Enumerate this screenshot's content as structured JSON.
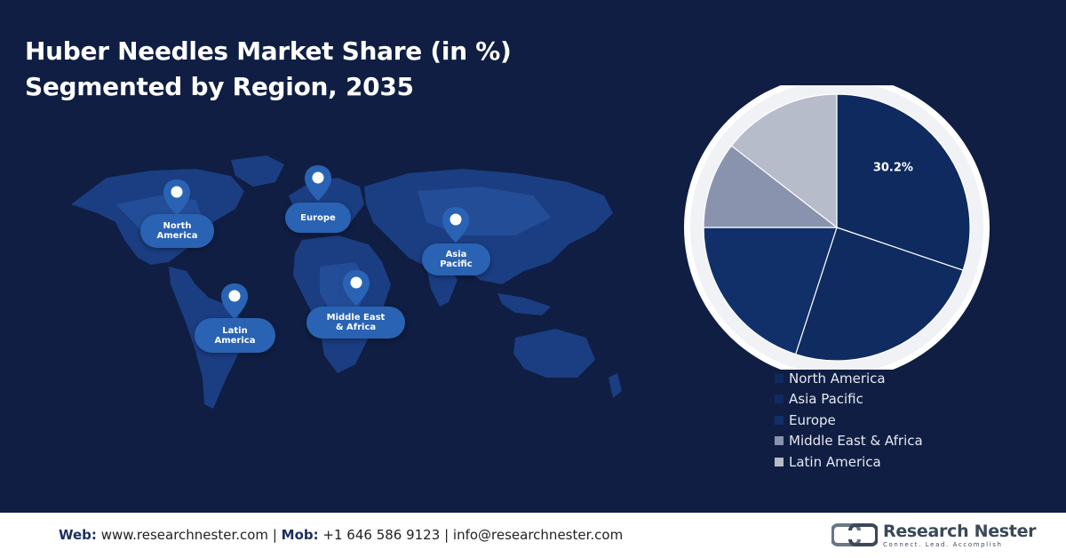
{
  "title": {
    "line1": "Huber Needles Market Share (in %)",
    "line2": "Segmented by Region, 2035"
  },
  "regions": {
    "north_america": "North America",
    "europe": "Europe",
    "asia_pacific": "Asia Pacific",
    "latin_america": "Latin America",
    "middle_east_africa": "Middle East & Africa"
  },
  "chart_data": {
    "type": "pie",
    "categories": [
      "North America",
      "Asia Pacific",
      "Europe",
      "Middle East & Africa",
      "Latin America"
    ],
    "values": [
      30.2,
      24.8,
      20.0,
      10.5,
      14.5
    ],
    "labels": [
      "30.2%",
      "",
      "",
      "",
      ""
    ],
    "colors": [
      "#0e2a5e",
      "#0f2b60",
      "#11306a",
      "#8a93ae",
      "#b7bccb"
    ],
    "legend_position": "bottom-right",
    "title": "Huber Needles Market Share (in %) Segmented by Region, 2035"
  },
  "footer": {
    "web_label": "Web:",
    "web_value": "www.researchnester.com",
    "sep1": "|",
    "mob_label": "Mob:",
    "mob_value": "+1 646 586 9123",
    "sep2": "|",
    "email": "info@researchnester.com"
  },
  "logo": {
    "name": "Research Nester",
    "tagline": "Connect. Lead. Accomplish"
  }
}
